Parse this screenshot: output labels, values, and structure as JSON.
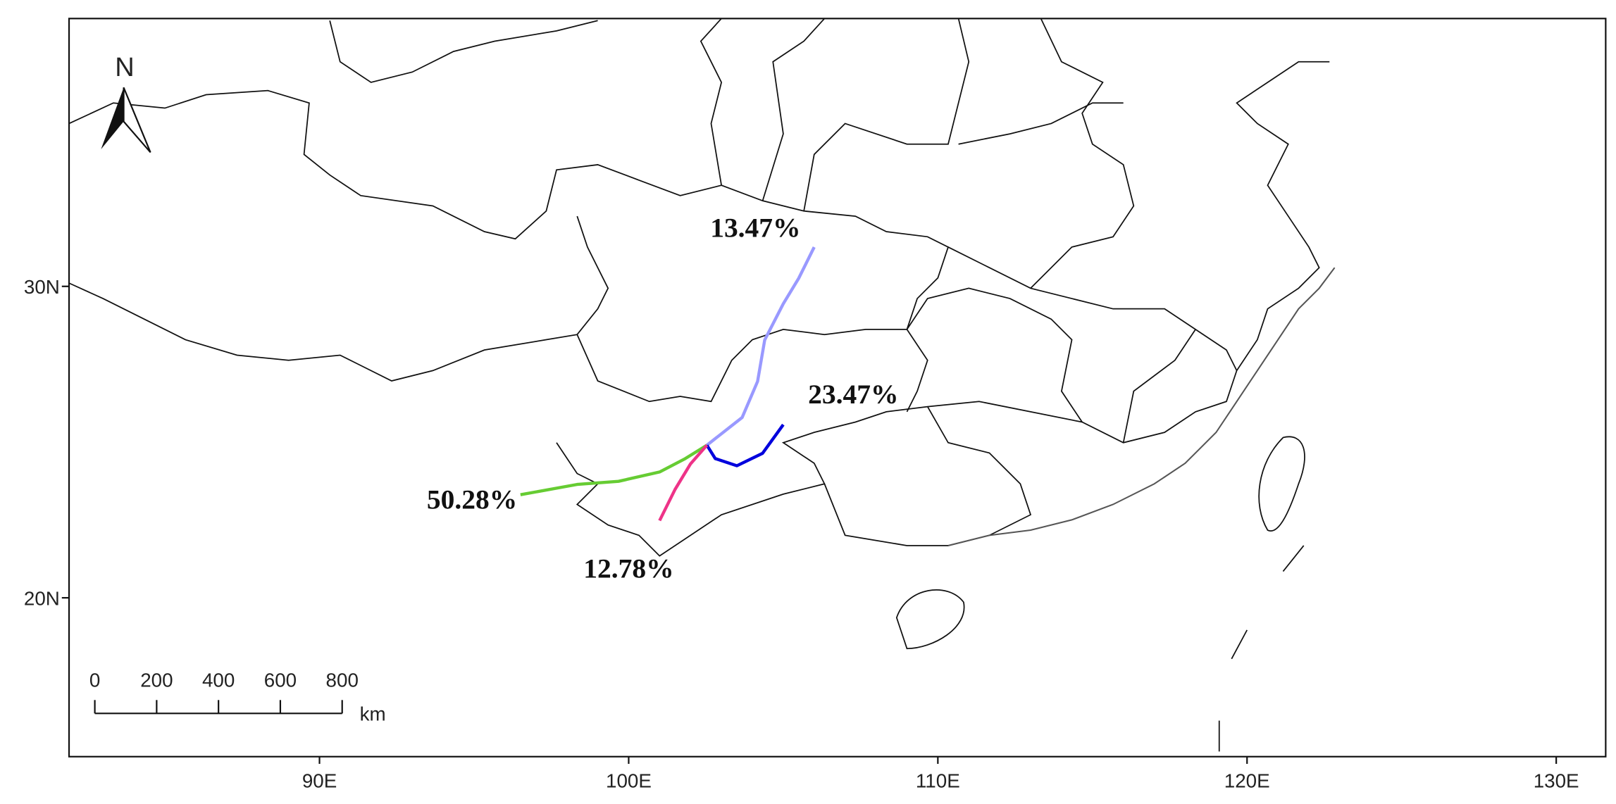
{
  "map": {
    "xlim": [
      81.9,
      131.6
    ],
    "ylim": [
      14.9,
      38.6
    ],
    "xticks": [
      {
        "value": 90,
        "label": "90E"
      },
      {
        "value": 100,
        "label": "100E"
      },
      {
        "value": 110,
        "label": "110E"
      },
      {
        "value": 120,
        "label": "120E"
      },
      {
        "value": 130,
        "label": "130E"
      }
    ],
    "yticks": [
      {
        "value": 20,
        "label": "20N"
      },
      {
        "value": 30,
        "label": "30N"
      }
    ],
    "north_label": "N",
    "scale_bar": {
      "ticks": [
        0,
        200,
        400,
        600,
        800
      ],
      "unit": "km"
    },
    "trajectories": [
      {
        "label": "13.47%",
        "color": "#9999ff",
        "lon": [
          102.53,
          103.67,
          104.17,
          104.4,
          105.0,
          105.5,
          106.0
        ],
        "lat": [
          24.9,
          25.79,
          26.95,
          28.28,
          29.44,
          30.26,
          31.26
        ]
      },
      {
        "label": "23.47%",
        "color": "#0000dd",
        "lon": [
          102.53,
          102.8,
          103.5,
          104.33,
          105.0
        ],
        "lat": [
          24.9,
          24.47,
          24.24,
          24.64,
          25.56
        ]
      },
      {
        "label": "50.28%",
        "color": "#66cc33",
        "lon": [
          102.53,
          101.83,
          101.0,
          99.67,
          98.33,
          96.5
        ],
        "lat": [
          24.9,
          24.47,
          24.04,
          23.74,
          23.64,
          23.31
        ]
      },
      {
        "label": "12.78%",
        "color": "#ee3388",
        "lon": [
          102.53,
          102.0,
          101.5,
          101.0
        ],
        "lat": [
          24.9,
          24.3,
          23.48,
          22.48
        ]
      }
    ]
  }
}
